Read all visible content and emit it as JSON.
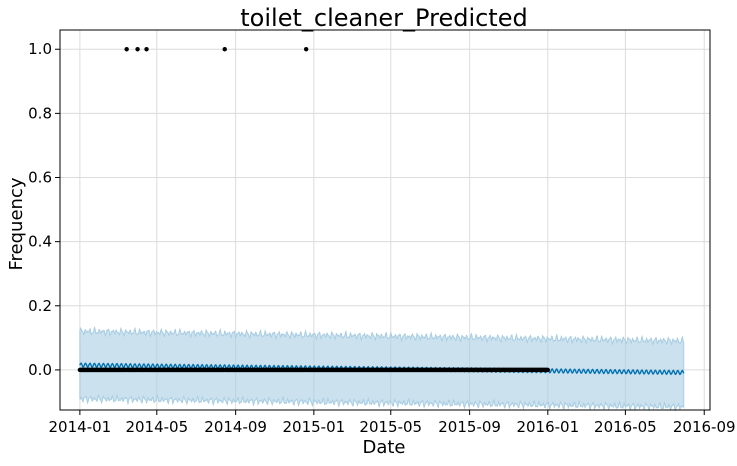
{
  "chart_data": {
    "type": "line",
    "title": "toilet_cleaner_Predicted",
    "xlabel": "Date",
    "ylabel": "Frequency",
    "x_range": [
      "2013-12-01",
      "2016-09-10"
    ],
    "ylim": [
      -0.125,
      1.06
    ],
    "x_ticks": [
      "2014-01",
      "2014-05",
      "2014-09",
      "2015-01",
      "2015-05",
      "2015-09",
      "2016-01",
      "2016-05",
      "2016-09"
    ],
    "y_ticks": [
      "0.0",
      "0.2",
      "0.4",
      "0.6",
      "0.8",
      "1.0"
    ],
    "y_tick_values": [
      0.0,
      0.2,
      0.4,
      0.6,
      0.8,
      1.0
    ],
    "grid": true,
    "colors": {
      "forecast": "#0072B2",
      "interval": "#A8CDE3",
      "observed": "#000000"
    },
    "observed_range": [
      "2014-01-01",
      "2016-01-01"
    ],
    "observed_baseline": 0.0,
    "observed_peaks": [
      {
        "date": "2014-03-15",
        "value": 1.0
      },
      {
        "date": "2014-04-01",
        "value": 1.0
      },
      {
        "date": "2014-04-15",
        "value": 1.0
      },
      {
        "date": "2014-08-15",
        "value": 1.0
      },
      {
        "date": "2014-12-20",
        "value": 1.0
      }
    ],
    "forecast": {
      "start": "2014-01-01",
      "end": "2016-07-31",
      "trend_start": 0.015,
      "trend_end": -0.008,
      "weekly_amplitude": 0.006,
      "interval_upper_start": 0.12,
      "interval_upper_end": 0.09,
      "interval_lower_start": -0.09,
      "interval_lower_end": -0.115
    }
  }
}
